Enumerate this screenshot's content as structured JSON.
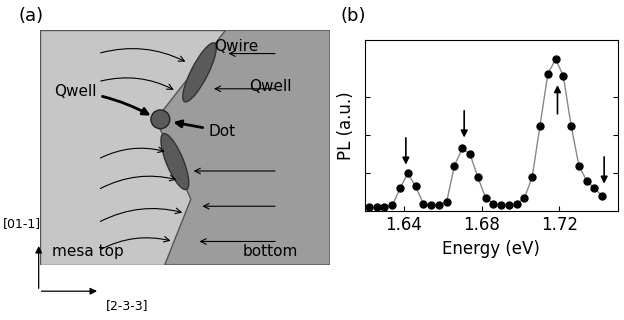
{
  "panel_a": {
    "label": "(a)",
    "texts": {
      "qwire": "Qwire",
      "qwell_left": "Qwell",
      "qwell_right": "Qwell",
      "dot": "Dot",
      "mesa_top": "mesa top",
      "bottom": "bottom"
    },
    "directions": {
      "vertical": "[01-1]",
      "horizontal": "[2-3-3]"
    }
  },
  "chart_data": {
    "type": "line",
    "panel_label": "(b)",
    "x_label": "Energy (eV)",
    "y_label": "PL (a.u.)",
    "x": [
      1.622,
      1.626,
      1.63,
      1.634,
      1.638,
      1.642,
      1.646,
      1.65,
      1.654,
      1.658,
      1.662,
      1.666,
      1.67,
      1.674,
      1.678,
      1.682,
      1.686,
      1.69,
      1.694,
      1.698,
      1.702,
      1.706,
      1.71,
      1.714,
      1.718,
      1.722,
      1.726,
      1.73,
      1.734,
      1.738,
      1.742
    ],
    "values": [
      0.02,
      0.02,
      0.02,
      0.03,
      0.12,
      0.2,
      0.13,
      0.04,
      0.03,
      0.03,
      0.05,
      0.24,
      0.33,
      0.3,
      0.18,
      0.07,
      0.04,
      0.03,
      0.03,
      0.04,
      0.07,
      0.18,
      0.45,
      0.72,
      0.8,
      0.71,
      0.45,
      0.24,
      0.16,
      0.12,
      0.08
    ],
    "color": "#000000",
    "marker": "o",
    "line_style": "solid",
    "xlim": [
      1.62,
      1.75
    ],
    "xticks": [
      1.64,
      1.68,
      1.72
    ],
    "ylim": [
      0,
      0.9
    ],
    "yticks": [
      0.2,
      0.4,
      0.6
    ],
    "tick_labels": "x",
    "arrows": [
      {
        "x": 1.641,
        "direction": "down"
      },
      {
        "x": 1.671,
        "direction": "down"
      },
      {
        "x": 1.719,
        "direction": "up"
      },
      {
        "x": 1.743,
        "direction": "down"
      }
    ]
  }
}
